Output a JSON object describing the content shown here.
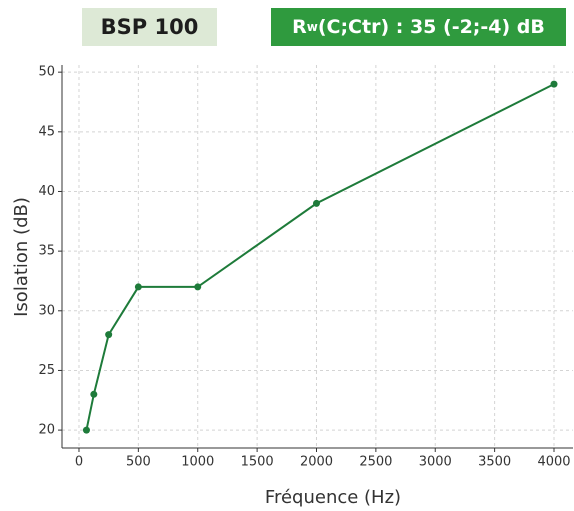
{
  "header": {
    "label": "BSP 100",
    "rating": {
      "symbol": "R",
      "subscript": "w",
      "text": "(C;Ctr) : 35 (-2;-4) dB"
    }
  },
  "chart_data": {
    "type": "line",
    "x_label": "Fréquence (Hz)",
    "y_label": "Isolation (dB)",
    "x": [
      63,
      125,
      250,
      500,
      1000,
      2000,
      4000
    ],
    "series": [
      {
        "color": "#1e7b3a",
        "values": [
          20,
          23,
          28,
          32,
          32,
          39,
          49
        ]
      }
    ],
    "xlim": [
      -143,
      4160
    ],
    "xticks": [
      0,
      500,
      1000,
      1500,
      2000,
      2500,
      3000,
      3500,
      4000
    ],
    "ylim": [
      18.5,
      50.6
    ],
    "yticks": [
      20,
      25,
      30,
      35,
      40,
      45,
      50
    ],
    "grid": true
  }
}
